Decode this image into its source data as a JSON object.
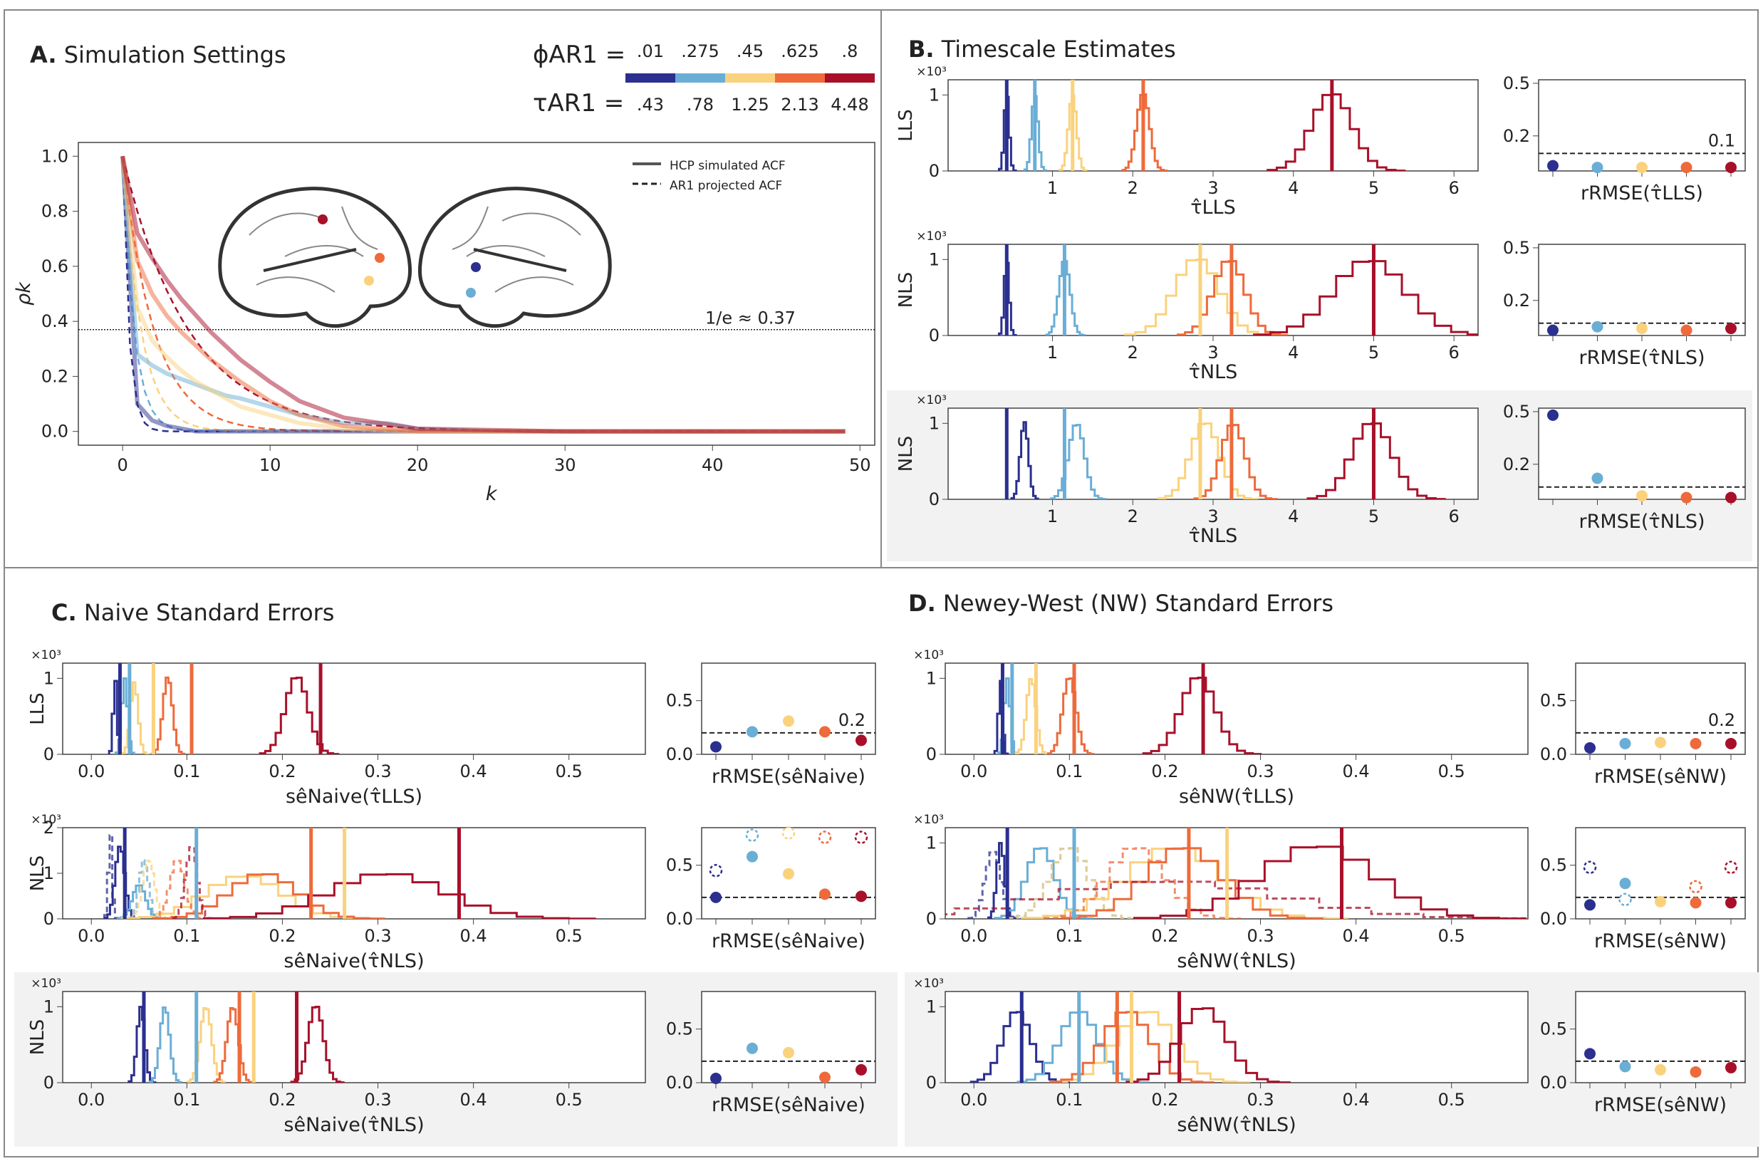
{
  "palette": [
    "#2b2f8f",
    "#6aaed6",
    "#fad27d",
    "#ee6a3b",
    "#a8102a"
  ],
  "settings": {
    "phi_label": "ϕAR1 =",
    "tau_label": "τAR1 =",
    "phi_values": [
      ".01",
      ".275",
      ".45",
      ".625",
      ".8"
    ],
    "tau_values": [
      ".43",
      ".78",
      "1.25",
      "2.13",
      "4.48"
    ]
  },
  "panel_titles": {
    "A": "A.",
    "A_text": "Simulation Settings",
    "B": "B.",
    "B_text": "Timescale Estimates",
    "C": "C.",
    "C_text": "Naive Standard Errors",
    "D": "D.",
    "D_text": "Newey-West (NW) Standard Errors"
  },
  "row_labels": {
    "lls": "LLS",
    "nls": "NLS"
  },
  "scale_label": "×10³",
  "chart_data": [
    {
      "id": "A",
      "type": "line",
      "xlabel": "k",
      "ylabel": "ρk",
      "xlim": [
        -3,
        51
      ],
      "ylim": [
        -0.05,
        1.05
      ],
      "xticks": [
        0,
        10,
        20,
        30,
        40,
        50
      ],
      "yticks": [
        0.0,
        0.2,
        0.4,
        0.6,
        0.8,
        1.0
      ],
      "yticklabels": [
        "0.0",
        "0.2",
        "0.4",
        "0.6",
        "0.8",
        "1.0"
      ],
      "hline": 0.37,
      "hline_label": "1/e ≈ 0.37",
      "legend": {
        "solid": "HCP simulated ACF",
        "dashed": "AR1 projected ACF",
        "position": "top-right"
      },
      "series": [
        {
          "tau": 0.43,
          "x": [
            0,
            1,
            2,
            3,
            4,
            5,
            6,
            7,
            8,
            10,
            12,
            15,
            20,
            30,
            40,
            49
          ],
          "hcp": [
            1.0,
            0.1,
            0.04,
            0.02,
            0.01,
            0.0,
            0.0,
            0.0,
            0.0,
            0.0,
            0.0,
            0.0,
            0.0,
            0.0,
            0.0,
            0.0
          ]
        },
        {
          "tau": 0.78,
          "x": [
            0,
            1,
            2,
            3,
            4,
            5,
            6,
            7,
            8,
            10,
            12,
            15,
            18,
            20,
            25,
            30,
            40,
            49
          ],
          "hcp": [
            1.0,
            0.28,
            0.24,
            0.21,
            0.19,
            0.17,
            0.15,
            0.13,
            0.12,
            0.09,
            0.06,
            0.03,
            0.03,
            0.01,
            0.0,
            0.0,
            0.0,
            0.0
          ]
        },
        {
          "tau": 1.25,
          "x": [
            0,
            1,
            2,
            3,
            4,
            5,
            6,
            7,
            8,
            10,
            12,
            15,
            20,
            30,
            40,
            49
          ],
          "hcp": [
            1.0,
            0.45,
            0.33,
            0.27,
            0.22,
            0.18,
            0.15,
            0.12,
            0.09,
            0.06,
            0.03,
            0.01,
            0.0,
            0.0,
            0.0,
            0.0
          ]
        },
        {
          "tau": 2.13,
          "x": [
            0,
            1,
            2,
            3,
            4,
            5,
            6,
            7,
            8,
            10,
            12,
            15,
            20,
            30,
            40,
            49
          ],
          "hcp": [
            1.0,
            0.62,
            0.5,
            0.42,
            0.36,
            0.31,
            0.26,
            0.22,
            0.18,
            0.11,
            0.06,
            0.02,
            0.0,
            0.0,
            0.0,
            0.0
          ]
        },
        {
          "tau": 4.48,
          "x": [
            0,
            1,
            2,
            3,
            4,
            5,
            6,
            7,
            8,
            10,
            12,
            15,
            20,
            30,
            40,
            49
          ],
          "hcp": [
            1.0,
            0.72,
            0.63,
            0.55,
            0.48,
            0.42,
            0.36,
            0.31,
            0.26,
            0.18,
            0.11,
            0.05,
            0.01,
            0.0,
            0.0,
            0.0
          ]
        }
      ]
    },
    {
      "id": "B-LLS",
      "type": "histogram",
      "ylabel": "LLS",
      "xlabel": "τ̂LLS",
      "xlim": [
        -0.3,
        6.3
      ],
      "xticks": [
        1,
        2,
        3,
        4,
        5,
        6
      ],
      "ymax": 1.2,
      "yticks": [
        0,
        1
      ],
      "series": [
        {
          "center": 0.43,
          "sd": 0.03,
          "peak": 1.02,
          "true": 0.43
        },
        {
          "center": 0.78,
          "sd": 0.04,
          "peak": 1.0,
          "true": 0.78
        },
        {
          "center": 1.25,
          "sd": 0.05,
          "peak": 1.0,
          "true": 1.25
        },
        {
          "center": 2.13,
          "sd": 0.08,
          "peak": 1.03,
          "true": 2.13
        },
        {
          "center": 4.48,
          "sd": 0.25,
          "peak": 1.03,
          "true": 4.48
        }
      ],
      "rmse": {
        "label": "rRMSE(τ̂LLS)",
        "ylim": [
          0,
          0.52
        ],
        "yticks": [
          0.2,
          0.5
        ],
        "hline": 0.1,
        "hline_label": "0.1",
        "values": [
          0.03,
          0.02,
          0.02,
          0.02,
          0.02
        ],
        "dashed": [
          null,
          null,
          null,
          null,
          null
        ]
      }
    },
    {
      "id": "B-NLS-1",
      "type": "histogram",
      "ylabel": "NLS",
      "xlabel": "τ̂NLS",
      "xlim": [
        -0.3,
        6.3
      ],
      "xticks": [
        1,
        2,
        3,
        4,
        5,
        6
      ],
      "ymax": 1.2,
      "yticks": [
        0,
        1
      ],
      "series": [
        {
          "center": 0.43,
          "sd": 0.03,
          "peak": 1.0,
          "true": 0.43
        },
        {
          "center": 1.15,
          "sd": 0.07,
          "peak": 1.0,
          "true": 1.15
        },
        {
          "center": 2.8,
          "sd": 0.28,
          "peak": 1.02,
          "true": 2.84
        },
        {
          "center": 3.2,
          "sd": 0.2,
          "peak": 1.0,
          "true": 3.23
        },
        {
          "center": 4.95,
          "sd": 0.45,
          "peak": 1.0,
          "true": 5.0
        }
      ],
      "rmse": {
        "label": "rRMSE(τ̂NLS)",
        "ylim": [
          0,
          0.52
        ],
        "yticks": [
          0.2,
          0.5
        ],
        "hline": 0.07,
        "hline_label": "",
        "values": [
          0.03,
          0.05,
          0.04,
          0.03,
          0.04
        ],
        "dashed": [
          null,
          null,
          null,
          null,
          null
        ]
      }
    },
    {
      "id": "B-NLS-2",
      "type": "histogram",
      "ylabel": "NLS",
      "xlabel": "τ̂NLS",
      "shaded": true,
      "xlim": [
        -0.3,
        6.3
      ],
      "xticks": [
        1,
        2,
        3,
        4,
        5,
        6
      ],
      "ymax": 1.2,
      "yticks": [
        0,
        1
      ],
      "series": [
        {
          "center": 0.65,
          "sd": 0.05,
          "peak": 1.02,
          "true": 0.43
        },
        {
          "center": 1.3,
          "sd": 0.1,
          "peak": 1.0,
          "true": 1.15
        },
        {
          "center": 2.9,
          "sd": 0.18,
          "peak": 1.02,
          "true": 2.84
        },
        {
          "center": 3.25,
          "sd": 0.15,
          "peak": 1.0,
          "true": 3.23
        },
        {
          "center": 4.98,
          "sd": 0.25,
          "peak": 1.02,
          "true": 5.0
        }
      ],
      "rmse": {
        "label": "rRMSE(τ̂NLS)",
        "ylim": [
          0,
          0.52
        ],
        "yticks": [
          0.2,
          0.5
        ],
        "hline": 0.07,
        "hline_label": "",
        "values": [
          0.48,
          0.12,
          0.02,
          0.01,
          0.01
        ],
        "dashed": [
          null,
          null,
          null,
          null,
          null
        ]
      }
    },
    {
      "id": "C-LLS",
      "type": "histogram",
      "ylabel": "LLS",
      "xlabel": "sêNaive(τ̂LLS)",
      "xlim": [
        -0.03,
        0.58
      ],
      "xticks": [
        0.0,
        0.1,
        0.2,
        0.3,
        0.4,
        0.5
      ],
      "ymax": 1.2,
      "yticks": [
        0,
        1
      ],
      "series": [
        {
          "center": 0.025,
          "sd": 0.002,
          "peak": 1.0,
          "true": 0.03
        },
        {
          "center": 0.035,
          "sd": 0.003,
          "peak": 1.0,
          "true": 0.04
        },
        {
          "center": 0.045,
          "sd": 0.004,
          "peak": 0.95,
          "true": 0.065
        },
        {
          "center": 0.08,
          "sd": 0.005,
          "peak": 1.02,
          "true": 0.105
        },
        {
          "center": 0.215,
          "sd": 0.012,
          "peak": 1.03,
          "true": 0.24
        }
      ],
      "rmse": {
        "label": "rRMSE(sêNaive)",
        "ylim": [
          0,
          0.85
        ],
        "yticks": [
          0.0,
          0.5
        ],
        "hline": 0.2,
        "hline_label": "0.2",
        "values": [
          0.07,
          0.21,
          0.31,
          0.21,
          0.13
        ],
        "dashed": [
          null,
          null,
          null,
          null,
          null
        ]
      }
    },
    {
      "id": "C-NLS-1",
      "type": "histogram",
      "ylabel": "NLS",
      "xlabel": "sêNaive(τ̂NLS)",
      "xlim": [
        -0.03,
        0.58
      ],
      "xticks": [
        0.0,
        0.1,
        0.2,
        0.3,
        0.4,
        0.5
      ],
      "ymax": 2.0,
      "yticks": [
        0,
        1,
        2
      ],
      "series": [
        {
          "center": 0.03,
          "sd": 0.005,
          "peak": 1.6,
          "true": 0.035,
          "dashed_center": 0.02,
          "dashed_sd": 0.002,
          "dashed_peak": 1.9
        },
        {
          "center": 0.05,
          "sd": 0.007,
          "peak": 0.75,
          "true": 0.11,
          "dashed_center": 0.055,
          "dashed_sd": 0.005,
          "dashed_peak": 1.3
        },
        {
          "center": 0.16,
          "sd": 0.04,
          "peak": 0.95,
          "true": 0.265,
          "dashed_center": 0.06,
          "dashed_sd": 0.006,
          "dashed_peak": 1.3
        },
        {
          "center": 0.18,
          "sd": 0.035,
          "peak": 1.0,
          "true": 0.23,
          "dashed_center": 0.09,
          "dashed_sd": 0.008,
          "dashed_peak": 1.3
        },
        {
          "center": 0.31,
          "sd": 0.06,
          "peak": 1.0,
          "true": 0.385,
          "dashed_center": 0.105,
          "dashed_sd": 0.006,
          "dashed_peak": 1.6
        }
      ],
      "rmse": {
        "label": "rRMSE(sêNaive)",
        "ylim": [
          0,
          0.85
        ],
        "yticks": [
          0.0,
          0.5
        ],
        "hline": 0.2,
        "hline_label": "",
        "values": [
          0.2,
          0.58,
          0.42,
          0.23,
          0.21
        ],
        "dashed": [
          0.45,
          0.78,
          0.8,
          0.76,
          0.76
        ]
      }
    },
    {
      "id": "C-NLS-2",
      "type": "histogram",
      "ylabel": "NLS",
      "xlabel": "sêNaive(τ̂NLS)",
      "shaded": true,
      "xlim": [
        -0.03,
        0.58
      ],
      "xticks": [
        0.0,
        0.1,
        0.2,
        0.3,
        0.4,
        0.5
      ],
      "ymax": 1.2,
      "yticks": [
        0,
        1
      ],
      "series": [
        {
          "center": 0.052,
          "sd": 0.004,
          "peak": 1.0,
          "true": 0.055
        },
        {
          "center": 0.077,
          "sd": 0.005,
          "peak": 1.0,
          "true": 0.11
        },
        {
          "center": 0.12,
          "sd": 0.006,
          "peak": 1.0,
          "true": 0.17
        },
        {
          "center": 0.148,
          "sd": 0.006,
          "peak": 1.0,
          "true": 0.155
        },
        {
          "center": 0.235,
          "sd": 0.008,
          "peak": 1.02,
          "true": 0.215
        }
      ],
      "rmse": {
        "label": "rRMSE(sêNaive)",
        "ylim": [
          0,
          0.85
        ],
        "yticks": [
          0.0,
          0.5
        ],
        "hline": 0.2,
        "hline_label": "",
        "values": [
          0.04,
          0.32,
          0.28,
          0.05,
          0.12
        ],
        "dashed": [
          null,
          null,
          null,
          null,
          null
        ]
      }
    },
    {
      "id": "D-LLS",
      "type": "histogram",
      "ylabel": "",
      "xlabel": "sêNW(τ̂LLS)",
      "xlim": [
        -0.03,
        0.58
      ],
      "xticks": [
        0.0,
        0.1,
        0.2,
        0.3,
        0.4,
        0.5
      ],
      "ymax": 1.2,
      "yticks": [
        0,
        1
      ],
      "series": [
        {
          "center": 0.028,
          "sd": 0.002,
          "peak": 1.0,
          "true": 0.03
        },
        {
          "center": 0.035,
          "sd": 0.003,
          "peak": 1.0,
          "true": 0.04
        },
        {
          "center": 0.06,
          "sd": 0.005,
          "peak": 1.0,
          "true": 0.065
        },
        {
          "center": 0.1,
          "sd": 0.007,
          "peak": 1.02,
          "true": 0.105
        },
        {
          "center": 0.235,
          "sd": 0.018,
          "peak": 1.03,
          "true": 0.24
        }
      ],
      "rmse": {
        "label": "rRMSE(sêNW)",
        "ylim": [
          0,
          0.85
        ],
        "yticks": [
          0.0,
          0.5
        ],
        "hline": 0.2,
        "hline_label": "0.2",
        "values": [
          0.06,
          0.1,
          0.11,
          0.1,
          0.1
        ],
        "dashed": [
          null,
          null,
          null,
          null,
          null
        ]
      }
    },
    {
      "id": "D-NLS-1",
      "type": "histogram",
      "ylabel": "",
      "xlabel": "sêNW(τ̂NLS)",
      "xlim": [
        -0.03,
        0.58
      ],
      "xticks": [
        0.0,
        0.1,
        0.2,
        0.3,
        0.4,
        0.5
      ],
      "ymax": 1.2,
      "yticks": [
        0,
        1
      ],
      "series": [
        {
          "center": 0.028,
          "sd": 0.004,
          "peak": 1.0,
          "true": 0.035,
          "dashed_center": 0.02,
          "dashed_sd": 0.008,
          "dashed_peak": 0.9
        },
        {
          "center": 0.07,
          "sd": 0.015,
          "peak": 0.95,
          "true": 0.105,
          "dashed_center": 0.1,
          "dashed_sd": 0.02,
          "dashed_peak": 0.95
        },
        {
          "center": 0.21,
          "sd": 0.05,
          "peak": 0.95,
          "true": 0.265,
          "dashed_center": 0.1,
          "dashed_sd": 0.02,
          "dashed_peak": 0.95
        },
        {
          "center": 0.22,
          "sd": 0.04,
          "peak": 0.95,
          "true": 0.225,
          "dashed_center": 0.17,
          "dashed_sd": 0.03,
          "dashed_peak": 0.95
        },
        {
          "center": 0.36,
          "sd": 0.06,
          "peak": 0.97,
          "true": 0.385,
          "dashed_center": 0.2,
          "dashed_sd": 0.12,
          "dashed_peak": 0.5
        }
      ],
      "rmse": {
        "label": "rRMSE(sêNW)",
        "ylim": [
          0,
          0.85
        ],
        "yticks": [
          0.0,
          0.5
        ],
        "hline": 0.2,
        "hline_label": "",
        "values": [
          0.13,
          0.33,
          0.16,
          0.15,
          0.15
        ],
        "dashed": [
          0.48,
          0.18,
          null,
          0.3,
          0.48
        ]
      }
    },
    {
      "id": "D-NLS-2",
      "type": "histogram",
      "ylabel": "",
      "xlabel": "sêNW(τ̂NLS)",
      "shaded": true,
      "xlim": [
        -0.03,
        0.58
      ],
      "xticks": [
        0.0,
        0.1,
        0.2,
        0.3,
        0.4,
        0.5
      ],
      "ymax": 1.2,
      "yticks": [
        0,
        1
      ],
      "series": [
        {
          "center": 0.045,
          "sd": 0.015,
          "peak": 0.95,
          "true": 0.05
        },
        {
          "center": 0.11,
          "sd": 0.02,
          "peak": 0.95,
          "true": 0.11
        },
        {
          "center": 0.18,
          "sd": 0.03,
          "peak": 0.95,
          "true": 0.165
        },
        {
          "center": 0.16,
          "sd": 0.025,
          "peak": 0.95,
          "true": 0.15
        },
        {
          "center": 0.24,
          "sd": 0.025,
          "peak": 1.0,
          "true": 0.215
        }
      ],
      "rmse": {
        "label": "rRMSE(sêNW)",
        "ylim": [
          0,
          0.85
        ],
        "yticks": [
          0.0,
          0.5
        ],
        "hline": 0.2,
        "hline_label": "",
        "values": [
          0.27,
          0.15,
          0.12,
          0.1,
          0.14
        ],
        "dashed": [
          null,
          null,
          null,
          null,
          null
        ]
      }
    }
  ]
}
